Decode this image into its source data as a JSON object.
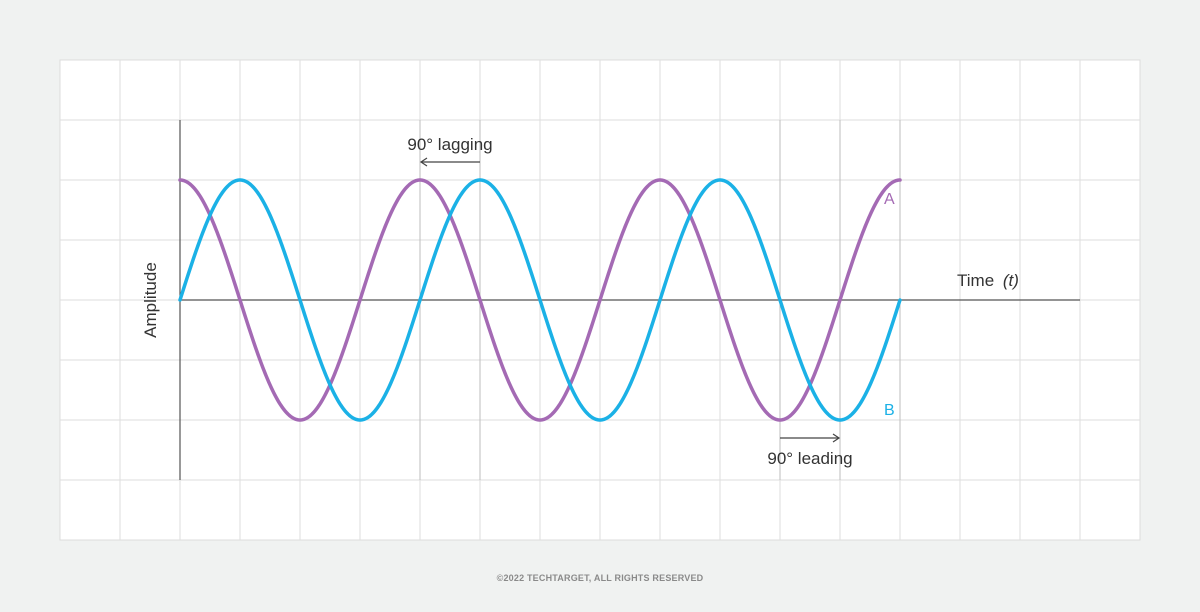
{
  "chart_data": {
    "type": "line",
    "xlabel": "Time",
    "xlabel_symbol": "(t)",
    "ylabel": "Amplitude",
    "series": [
      {
        "name": "A",
        "function": "cosine",
        "color": "#a46ab4",
        "cycles": 3,
        "phase_deg": 90
      },
      {
        "name": "B",
        "function": "sine",
        "color": "#1bb1e6",
        "cycles": 3,
        "phase_deg": 0
      }
    ],
    "annotations": [
      {
        "text": "90° lagging",
        "direction": "left"
      },
      {
        "text": "90° leading",
        "direction": "right"
      }
    ],
    "grid": true
  },
  "footer": {
    "copyright": "©2022 TECHTARGET, ALL RIGHTS RESERVED"
  }
}
